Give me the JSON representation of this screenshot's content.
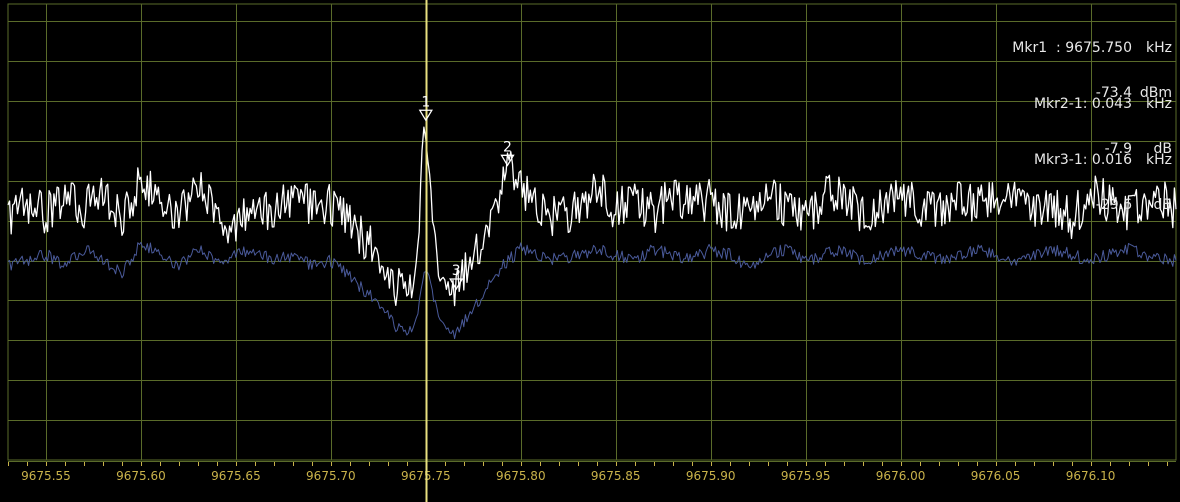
{
  "colors": {
    "background": "#000000",
    "grid": "#5a6b2a",
    "axis_labels": "#c9b24a",
    "trace_main": "#ffffff",
    "trace_avg": "#4a5a9a",
    "marker_line": "#e8e080",
    "marker_text": "#ffffff"
  },
  "markers_readout": [
    {
      "name": "Mkr1  : 9675.750",
      "unit": "kHz",
      "value": "-73.4",
      "value_unit": "dBm"
    },
    {
      "name": "Mkr2-1: 0.043",
      "unit": "kHz",
      "value": "-7.9",
      "value_unit": "dB"
    },
    {
      "name": "Mkr3-1: 0.016",
      "unit": "kHz",
      "value": "-29.6",
      "value_unit": "dB"
    }
  ],
  "chart_data": {
    "type": "line",
    "title": "",
    "xlabel": "",
    "ylabel": "",
    "xlim": [
      9675.53,
      9676.145
    ],
    "ylim": [
      -133,
      -53
    ],
    "grid": true,
    "x_ticks": [
      "9675.55",
      "9675.60",
      "9675.65",
      "9675.70",
      "9675.75",
      "9675.80",
      "9675.85",
      "9675.90",
      "9675.95",
      "9676.00",
      "9676.05",
      "9676.10"
    ],
    "x_tick_values": [
      9675.55,
      9675.6,
      9675.65,
      9675.7,
      9675.75,
      9675.8,
      9675.85,
      9675.9,
      9675.95,
      9676.0,
      9676.05,
      9676.1
    ],
    "y_gridlines": [
      -56,
      -63,
      -70,
      -77,
      -84,
      -91,
      -98,
      -105,
      -112,
      -119,
      -126
    ],
    "markers": [
      {
        "label": "1",
        "x": 9675.75,
        "y": -73.4
      },
      {
        "label": "2",
        "x": 9675.793,
        "y": -81.3
      },
      {
        "label": "3",
        "x": 9675.766,
        "y": -103.0
      }
    ],
    "series": [
      {
        "x": [
          9675.53,
          9675.54,
          9675.55,
          9675.56,
          9675.57,
          9675.58,
          9675.59,
          9675.6,
          9675.61,
          9675.62,
          9675.63,
          9675.64,
          9675.65,
          9675.66,
          9675.67,
          9675.68,
          9675.69,
          9675.7,
          9675.71,
          9675.72,
          9675.73,
          9675.735,
          9675.74,
          9675.745,
          9675.748,
          9675.75,
          9675.752,
          9675.755,
          9675.76,
          9675.766,
          9675.77,
          9675.78,
          9675.785,
          9675.79,
          9675.793,
          9675.8,
          9675.81,
          9675.82,
          9675.83,
          9675.84,
          9675.85,
          9675.86,
          9675.87,
          9675.88,
          9675.89,
          9675.9,
          9675.91,
          9675.92,
          9675.93,
          9675.94,
          9675.95,
          9675.96,
          9675.97,
          9675.98,
          9675.99,
          9676.0,
          9676.01,
          9676.02,
          9676.03,
          9676.04,
          9676.05,
          9676.06,
          9676.07,
          9676.08,
          9676.09,
          9676.1,
          9676.11,
          9676.12,
          9676.13,
          9676.14,
          9676.145
        ],
        "y": [
          -91,
          -88,
          -90,
          -87,
          -89,
          -86,
          -90,
          -84,
          -88,
          -90,
          -85,
          -89,
          -93,
          -87,
          -90,
          -86,
          -89,
          -88,
          -92,
          -95,
          -100,
          -103,
          -104,
          -98,
          -82,
          -73.4,
          -86,
          -97,
          -100,
          -103,
          -101,
          -94,
          -89,
          -85,
          -81.3,
          -86,
          -88,
          -91,
          -89,
          -85,
          -89,
          -87,
          -90,
          -86,
          -89,
          -87,
          -90,
          -88,
          -86,
          -89,
          -90,
          -87,
          -86,
          -90,
          -88,
          -86,
          -89,
          -90,
          -86,
          -88,
          -87,
          -85,
          -89,
          -88,
          -91,
          -86,
          -88,
          -90,
          -87,
          -88,
          -89
        ]
      },
      {
        "x": [
          9675.53,
          9675.54,
          9675.55,
          9675.56,
          9675.57,
          9675.58,
          9675.59,
          9675.6,
          9675.61,
          9675.62,
          9675.63,
          9675.64,
          9675.65,
          9675.66,
          9675.67,
          9675.68,
          9675.69,
          9675.7,
          9675.71,
          9675.72,
          9675.73,
          9675.735,
          9675.74,
          9675.745,
          9675.75,
          9675.755,
          9675.76,
          9675.766,
          9675.77,
          9675.78,
          9675.79,
          9675.8,
          9675.81,
          9675.82,
          9675.83,
          9675.84,
          9675.85,
          9675.86,
          9675.87,
          9675.88,
          9675.89,
          9675.9,
          9675.91,
          9675.92,
          9675.93,
          9675.94,
          9675.95,
          9675.96,
          9675.97,
          9675.98,
          9675.99,
          9676.0,
          9676.01,
          9676.02,
          9676.03,
          9676.04,
          9676.05,
          9676.06,
          9676.07,
          9676.08,
          9676.09,
          9676.1,
          9676.11,
          9676.12,
          9676.13,
          9676.14,
          9676.145
        ],
        "y": [
          -99,
          -98,
          -97,
          -99,
          -96,
          -98,
          -100,
          -95,
          -97,
          -99,
          -96,
          -98,
          -97,
          -96,
          -98,
          -97,
          -99,
          -98,
          -101,
          -104,
          -107,
          -110,
          -111,
          -108,
          -99,
          -106,
          -109,
          -111,
          -109,
          -104,
          -99,
          -96,
          -97,
          -98,
          -97,
          -96,
          -97,
          -98,
          -96,
          -97,
          -98,
          -96,
          -97,
          -99,
          -97,
          -96,
          -98,
          -97,
          -96,
          -98,
          -97,
          -96,
          -97,
          -98,
          -97,
          -96,
          -97,
          -98,
          -97,
          -96,
          -97,
          -98,
          -97,
          -96,
          -97,
          -98,
          -98
        ]
      }
    ]
  }
}
